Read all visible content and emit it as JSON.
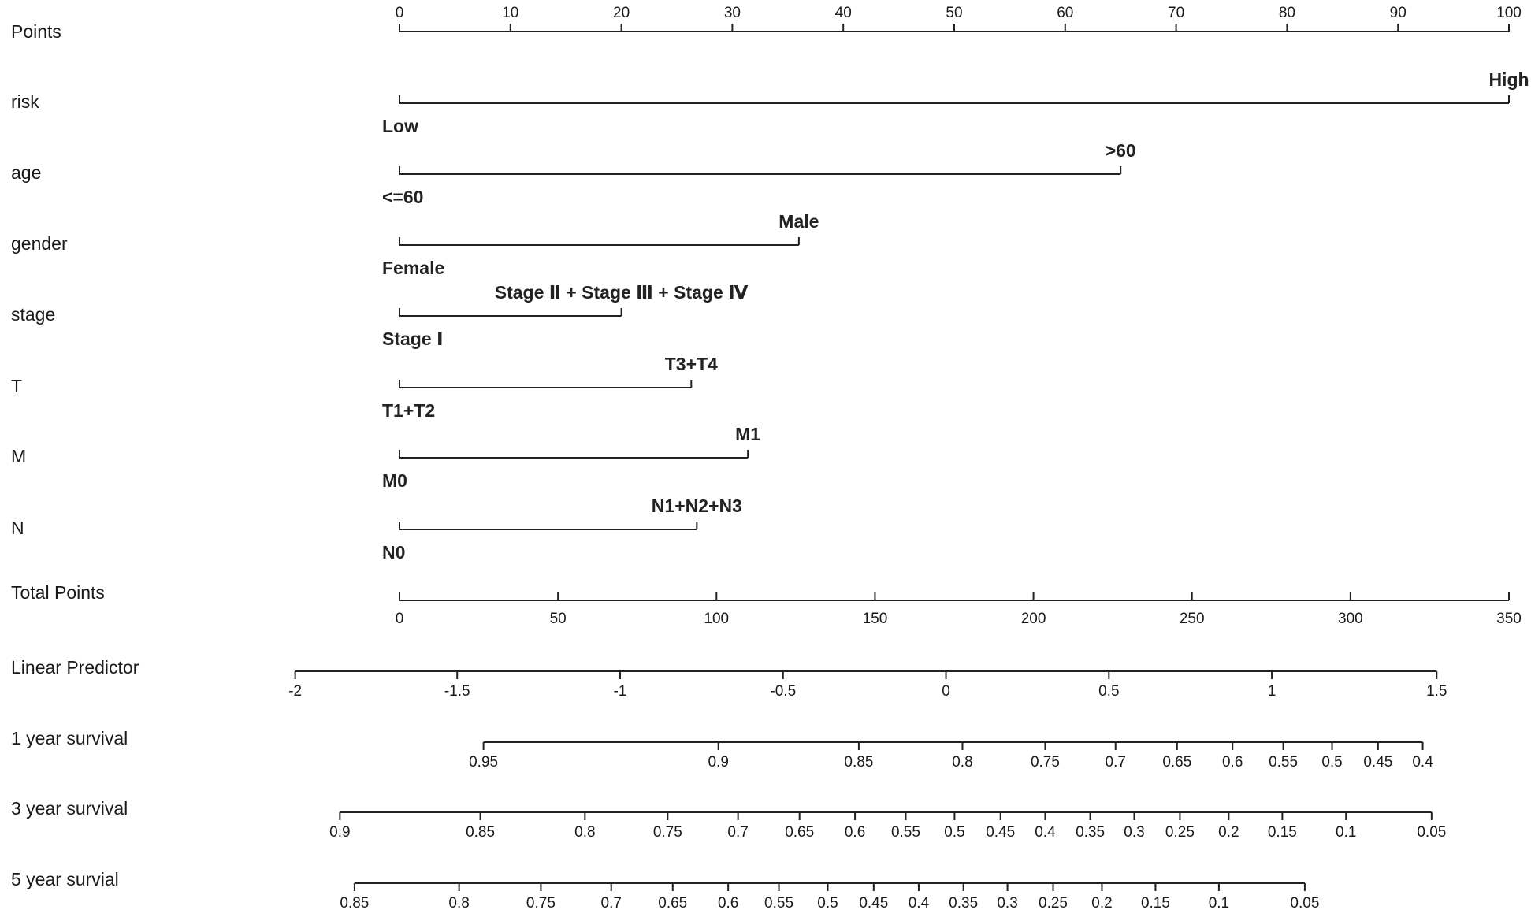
{
  "chart_data": {
    "type": "nomogram",
    "points_axis": {
      "label": "Points",
      "xlim": [
        0,
        100
      ],
      "xticks": [
        0,
        10,
        20,
        30,
        40,
        50,
        60,
        70,
        80,
        90,
        100
      ]
    },
    "variables": [
      {
        "label": "risk",
        "levels": [
          "Low",
          "High"
        ],
        "points": [
          0,
          100
        ]
      },
      {
        "label": "age",
        "levels": [
          "<=60",
          ">60"
        ],
        "points": [
          0,
          65
        ]
      },
      {
        "label": "gender",
        "levels": [
          "Female",
          "Male"
        ],
        "points": [
          0,
          36
        ]
      },
      {
        "label": "stage",
        "levels": [
          "Stage Ⅰ",
          "Stage Ⅱ + Stage Ⅲ + Stage Ⅳ"
        ],
        "points": [
          0,
          20
        ]
      },
      {
        "label": "T",
        "levels": [
          "T1+T2",
          "T3+T4"
        ],
        "points": [
          0,
          26.3
        ]
      },
      {
        "label": "M",
        "levels": [
          "M0",
          "M1"
        ],
        "points": [
          0,
          31.4
        ]
      },
      {
        "label": "N",
        "levels": [
          "N0",
          "N1+N2+N3"
        ],
        "points": [
          0,
          26.8
        ]
      }
    ],
    "total_points": {
      "label": "Total Points",
      "xlim": [
        0,
        350
      ],
      "xticks": [
        0,
        50,
        100,
        150,
        200,
        250,
        300,
        350
      ]
    },
    "scales": [
      {
        "label": "Linear Predictor",
        "values": [
          -2,
          -1.5,
          -1,
          -0.5,
          0,
          0.5,
          1,
          1.5
        ],
        "x": [
          -32.9,
          18.2,
          69.6,
          121.0,
          172.4,
          223.8,
          275.2,
          327.2
        ]
      },
      {
        "label": "1 year survival",
        "values": [
          0.95,
          0.9,
          0.85,
          0.8,
          0.75,
          0.7,
          0.65,
          0.6,
          0.55,
          0.5,
          0.45,
          0.4
        ],
        "x": [
          26.5,
          100.6,
          144.9,
          177.6,
          203.7,
          225.9,
          245.3,
          262.8,
          278.8,
          294.2,
          308.7,
          322.8
        ]
      },
      {
        "label": "3 year survival",
        "values": [
          0.9,
          0.85,
          0.8,
          0.75,
          0.7,
          0.65,
          0.6,
          0.55,
          0.5,
          0.45,
          0.4,
          0.35,
          0.3,
          0.25,
          0.2,
          0.15,
          0.1,
          0.05
        ],
        "x": [
          -18.8,
          25.5,
          58.5,
          84.6,
          106.8,
          126.2,
          143.7,
          159.7,
          175.1,
          189.6,
          203.7,
          217.9,
          231.8,
          246.2,
          261.6,
          278.5,
          298.6,
          325.6
        ]
      },
      {
        "label": "5 year survial",
        "values": [
          0.85,
          0.8,
          0.75,
          0.7,
          0.65,
          0.6,
          0.55,
          0.5,
          0.45,
          0.4,
          0.35,
          0.3,
          0.25,
          0.2,
          0.15,
          0.1,
          0.05
        ],
        "x": [
          -14.2,
          18.8,
          44.6,
          66.8,
          86.2,
          103.7,
          119.7,
          135.1,
          149.6,
          163.8,
          177.9,
          191.8,
          206.2,
          221.6,
          238.5,
          258.5,
          285.6
        ]
      }
    ]
  }
}
